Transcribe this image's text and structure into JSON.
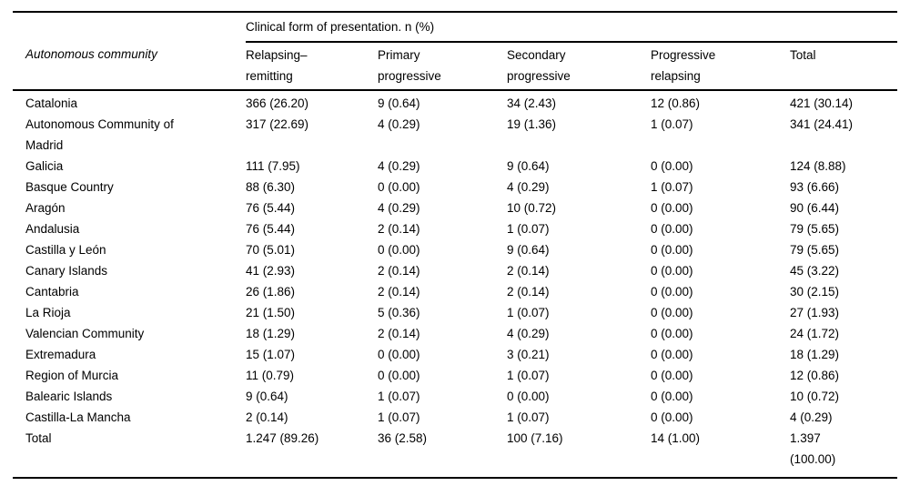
{
  "table": {
    "span_header": "Clinical form of presentation. n (%)",
    "row_header": "Autonomous community",
    "columns": [
      "Relapsing–remitting",
      "Primary progressive",
      "Secondary progressive",
      "Progressive relapsing",
      "Total"
    ],
    "rows": [
      {
        "community": "Catalonia",
        "values": [
          "366 (26.20)",
          "9 (0.64)",
          "34 (2.43)",
          "12 (0.86)",
          "421 (30.14)"
        ]
      },
      {
        "community": "Autonomous Community of Madrid",
        "values": [
          "317 (22.69)",
          "4 (0.29)",
          "19 (1.36)",
          "1 (0.07)",
          "341 (24.41)"
        ]
      },
      {
        "community": "Galicia",
        "values": [
          "111 (7.95)",
          "4 (0.29)",
          "9 (0.64)",
          "0 (0.00)",
          "124 (8.88)"
        ]
      },
      {
        "community": "Basque Country",
        "values": [
          "88 (6.30)",
          "0 (0.00)",
          "4 (0.29)",
          "1 (0.07)",
          "93 (6.66)"
        ]
      },
      {
        "community": "Aragón",
        "values": [
          "76 (5.44)",
          "4 (0.29)",
          "10 (0.72)",
          "0 (0.00)",
          "90 (6.44)"
        ]
      },
      {
        "community": "Andalusia",
        "values": [
          "76 (5.44)",
          "2 (0.14)",
          "1 (0.07)",
          "0 (0.00)",
          "79 (5.65)"
        ]
      },
      {
        "community": "Castilla y León",
        "values": [
          "70 (5.01)",
          "0 (0.00)",
          "9 (0.64)",
          "0 (0.00)",
          "79 (5.65)"
        ]
      },
      {
        "community": "Canary Islands",
        "values": [
          "41 (2.93)",
          "2 (0.14)",
          "2 (0.14)",
          "0 (0.00)",
          "45 (3.22)"
        ]
      },
      {
        "community": "Cantabria",
        "values": [
          "26 (1.86)",
          "2 (0.14)",
          "2 (0.14)",
          "0 (0.00)",
          "30 (2.15)"
        ]
      },
      {
        "community": "La Rioja",
        "values": [
          "21 (1.50)",
          "5 (0.36)",
          "1 (0.07)",
          "0 (0.00)",
          "27 (1.93)"
        ]
      },
      {
        "community": "Valencian Community",
        "values": [
          "18 (1.29)",
          "2 (0.14)",
          "4 (0.29)",
          "0 (0.00)",
          "24 (1.72)"
        ]
      },
      {
        "community": "Extremadura",
        "values": [
          "15 (1.07)",
          "0 (0.00)",
          "3 (0.21)",
          "0 (0.00)",
          "18 (1.29)"
        ]
      },
      {
        "community": "Region of Murcia",
        "values": [
          "11 (0.79)",
          "0 (0.00)",
          "1 (0.07)",
          "0 (0.00)",
          "12 (0.86)"
        ]
      },
      {
        "community": "Balearic Islands",
        "values": [
          "9 (0.64)",
          "1 (0.07)",
          "0 (0.00)",
          "0 (0.00)",
          "10 (0.72)"
        ]
      },
      {
        "community": "Castilla-La Mancha",
        "values": [
          "2 (0.14)",
          "1 (0.07)",
          "1 (0.07)",
          "0 (0.00)",
          "4 (0.29)"
        ]
      },
      {
        "community": "Total",
        "values": [
          "1.247 (89.26)",
          "36 (2.58)",
          "100 (7.16)",
          "14 (1.00)",
          "1.397 (100.00)"
        ]
      }
    ]
  }
}
